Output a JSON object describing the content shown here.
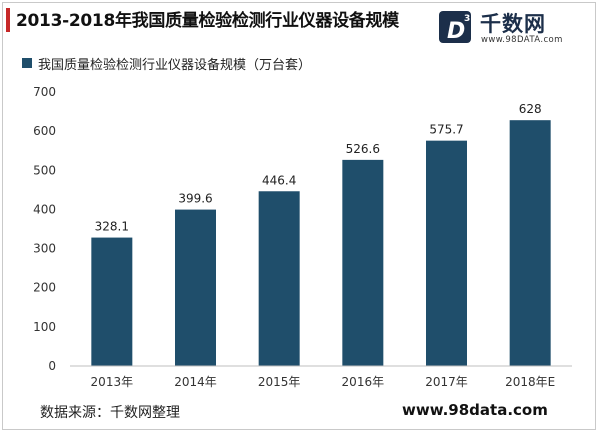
{
  "header": {
    "title": "2013-2018年我国质量检验检测行业仪器设备规模"
  },
  "brand": {
    "logo_letter": "D",
    "logo_superscript": "3",
    "name": "千数网",
    "url": "www.98DATA.com",
    "color": "#1c2f4a"
  },
  "footer": {
    "source": "数据来源：千数网整理",
    "site": "www.98data.com"
  },
  "colors": {
    "bar": "#1f4e6b",
    "title_accent": "#c62828"
  },
  "chart_data": {
    "type": "bar",
    "title": "2013-2018年我国质量检验检测行业仪器设备规模",
    "categories": [
      "2013年",
      "2014年",
      "2015年",
      "2016年",
      "2017年",
      "2018年E"
    ],
    "series": [
      {
        "name": "我国质量检验检测行业仪器设备规模（万台套）",
        "values": [
          328.1,
          399.6,
          446.4,
          526.6,
          575.7,
          628
        ],
        "labels": [
          "328.1",
          "399.6",
          "446.4",
          "526.6",
          "575.7",
          "628"
        ]
      }
    ],
    "xlabel": "",
    "ylabel": "",
    "ylim": [
      0,
      700
    ],
    "yticks": [
      0,
      100,
      200,
      300,
      400,
      500,
      600,
      700
    ],
    "grid": false,
    "legend": "top-left"
  }
}
